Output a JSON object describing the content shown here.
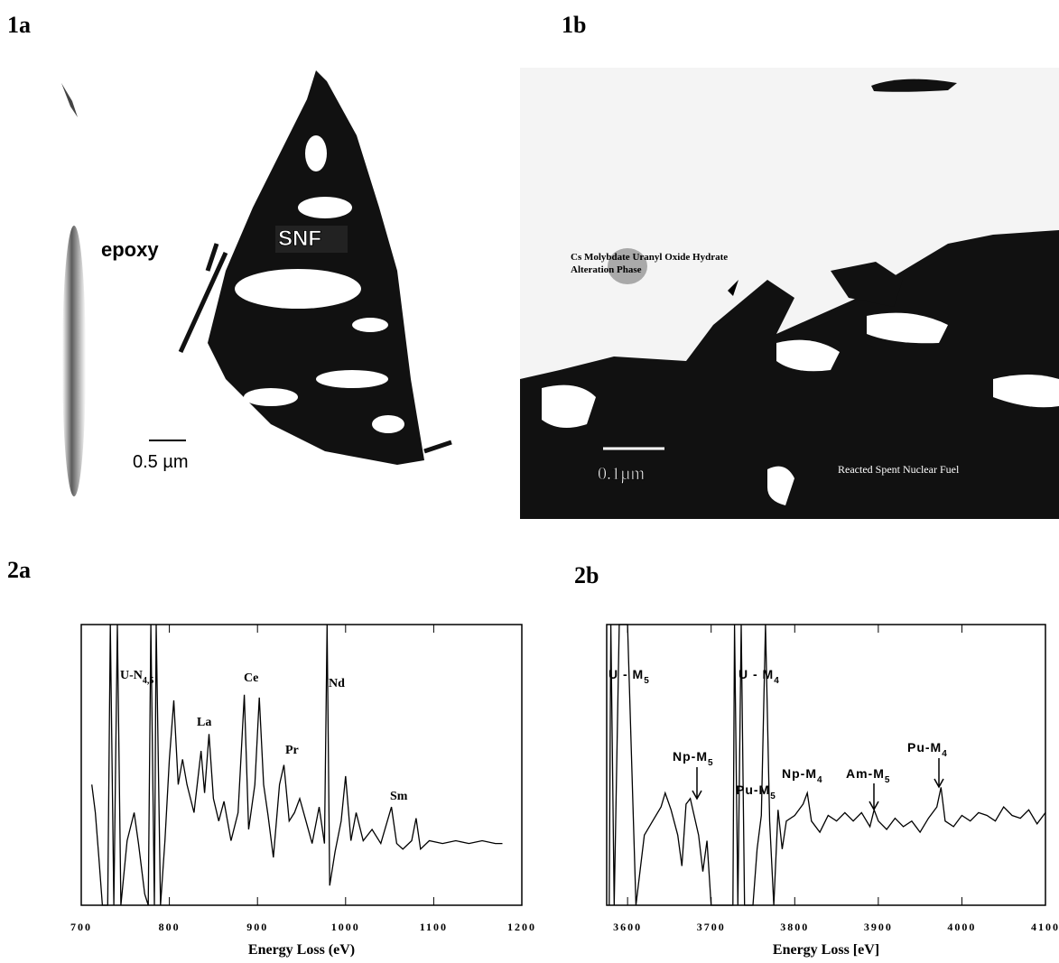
{
  "panel_labels": [
    "1a",
    "1b",
    "2a",
    "2b"
  ],
  "micrograph_1a": {
    "labels": [
      "epoxy",
      "SNF"
    ],
    "scale_bar": "0.5 µm"
  },
  "micrograph_1b": {
    "labels": [
      "Cs Molybdate Uranyl Oxide Hydrate",
      "Alteration Phase",
      "Reacted Spent Nuclear Fuel"
    ],
    "scale_bar": "0.1µm"
  },
  "chart_data": [
    {
      "type": "line",
      "x_label": "Energy Loss (eV)",
      "xlim": [
        700,
        1200
      ],
      "xticks": [
        700,
        800,
        900,
        1000,
        1100,
        1200
      ],
      "ylim": [
        0,
        10
      ],
      "color": "#000",
      "x": [
        712,
        716,
        720,
        724,
        730,
        733,
        737,
        741,
        745,
        752,
        760,
        765,
        772,
        776,
        779,
        783,
        785,
        790,
        795,
        800,
        805,
        810,
        815,
        820,
        828,
        836,
        840,
        845,
        850,
        856,
        862,
        870,
        878,
        885,
        890,
        897,
        902,
        907,
        912,
        918,
        925,
        930,
        936,
        942,
        948,
        955,
        962,
        970,
        976,
        979,
        982,
        988,
        995,
        1000,
        1006,
        1012,
        1020,
        1030,
        1040,
        1052,
        1058,
        1065,
        1075,
        1080,
        1085,
        1095,
        1110,
        1125,
        1140,
        1155,
        1170,
        1178
      ],
      "values": [
        4.3,
        3.3,
        1.7,
        0,
        0,
        10,
        0,
        10,
        0,
        2.3,
        3.3,
        2.2,
        0.4,
        0,
        10,
        0,
        10,
        0,
        2.3,
        5.2,
        7.3,
        4.3,
        5.2,
        4.3,
        3.3,
        5.5,
        4.0,
        6.1,
        3.8,
        3.0,
        3.7,
        2.3,
        3.3,
        7.5,
        2.7,
        4.3,
        7.4,
        4.3,
        3.2,
        1.7,
        4.3,
        5.0,
        3.0,
        3.3,
        3.8,
        3.0,
        2.2,
        3.5,
        2.2,
        10,
        0.7,
        1.9,
        3.0,
        4.6,
        2.3,
        3.3,
        2.3,
        2.7,
        2.2,
        3.5,
        2.2,
        2.0,
        2.3,
        3.1,
        2.0,
        2.3,
        2.2,
        2.3,
        2.2,
        2.3,
        2.2,
        2.2
      ],
      "annotations": [
        {
          "text": "U-N",
          "sub": "4,5"
        },
        {
          "text": "La"
        },
        {
          "text": "Ce"
        },
        {
          "text": "Pr"
        },
        {
          "text": "Nd"
        },
        {
          "text": "Sm"
        }
      ]
    },
    {
      "type": "line",
      "x_label": "Energy Loss [eV]",
      "xlim": [
        3575,
        4100
      ],
      "xticks": [
        3600,
        3700,
        3800,
        3900,
        4000,
        4100
      ],
      "ylim": [
        0,
        10
      ],
      "color": "#000",
      "x": [
        3578,
        3580,
        3584,
        3590,
        3594,
        3600,
        3610,
        3620,
        3630,
        3640,
        3645,
        3652,
        3660,
        3665,
        3670,
        3675,
        3685,
        3690,
        3695,
        3700,
        3726,
        3728,
        3732,
        3736,
        3740,
        3750,
        3755,
        3760,
        3765,
        3770,
        3775,
        3780,
        3785,
        3790,
        3800,
        3810,
        3815,
        3820,
        3830,
        3840,
        3850,
        3860,
        3870,
        3880,
        3890,
        3895,
        3900,
        3910,
        3920,
        3930,
        3940,
        3950,
        3960,
        3970,
        3975,
        3980,
        3990,
        4000,
        4010,
        4020,
        4030,
        4040,
        4050,
        4060,
        4070,
        4080,
        4090,
        4100
      ],
      "values": [
        0,
        10,
        0,
        10,
        10,
        10,
        0,
        2.5,
        3.0,
        3.5,
        4.0,
        3.4,
        2.5,
        1.4,
        3.6,
        3.8,
        2.5,
        1.2,
        2.3,
        0,
        0,
        10,
        0,
        10,
        0,
        0,
        2.0,
        3.2,
        10,
        3.0,
        0,
        3.4,
        2.0,
        3.0,
        3.2,
        3.6,
        4.0,
        3.0,
        2.6,
        3.2,
        3.0,
        3.3,
        3.0,
        3.3,
        2.8,
        3.4,
        3.0,
        2.7,
        3.1,
        2.8,
        3.0,
        2.6,
        3.1,
        3.5,
        4.2,
        3.0,
        2.8,
        3.2,
        3.0,
        3.3,
        3.2,
        3.0,
        3.5,
        3.2,
        3.1,
        3.4,
        2.9,
        3.3
      ],
      "annotations": [
        {
          "text": "U - M",
          "sub": "5"
        },
        {
          "text": "U - M",
          "sub": "4"
        },
        {
          "text": "Np-M",
          "sub": "5"
        },
        {
          "text": "Pu-M",
          "sub": "5"
        },
        {
          "text": "Np-M",
          "sub": "4"
        },
        {
          "text": "Am-M",
          "sub": "5"
        },
        {
          "text": "Pu-M",
          "sub": "4"
        }
      ]
    }
  ]
}
